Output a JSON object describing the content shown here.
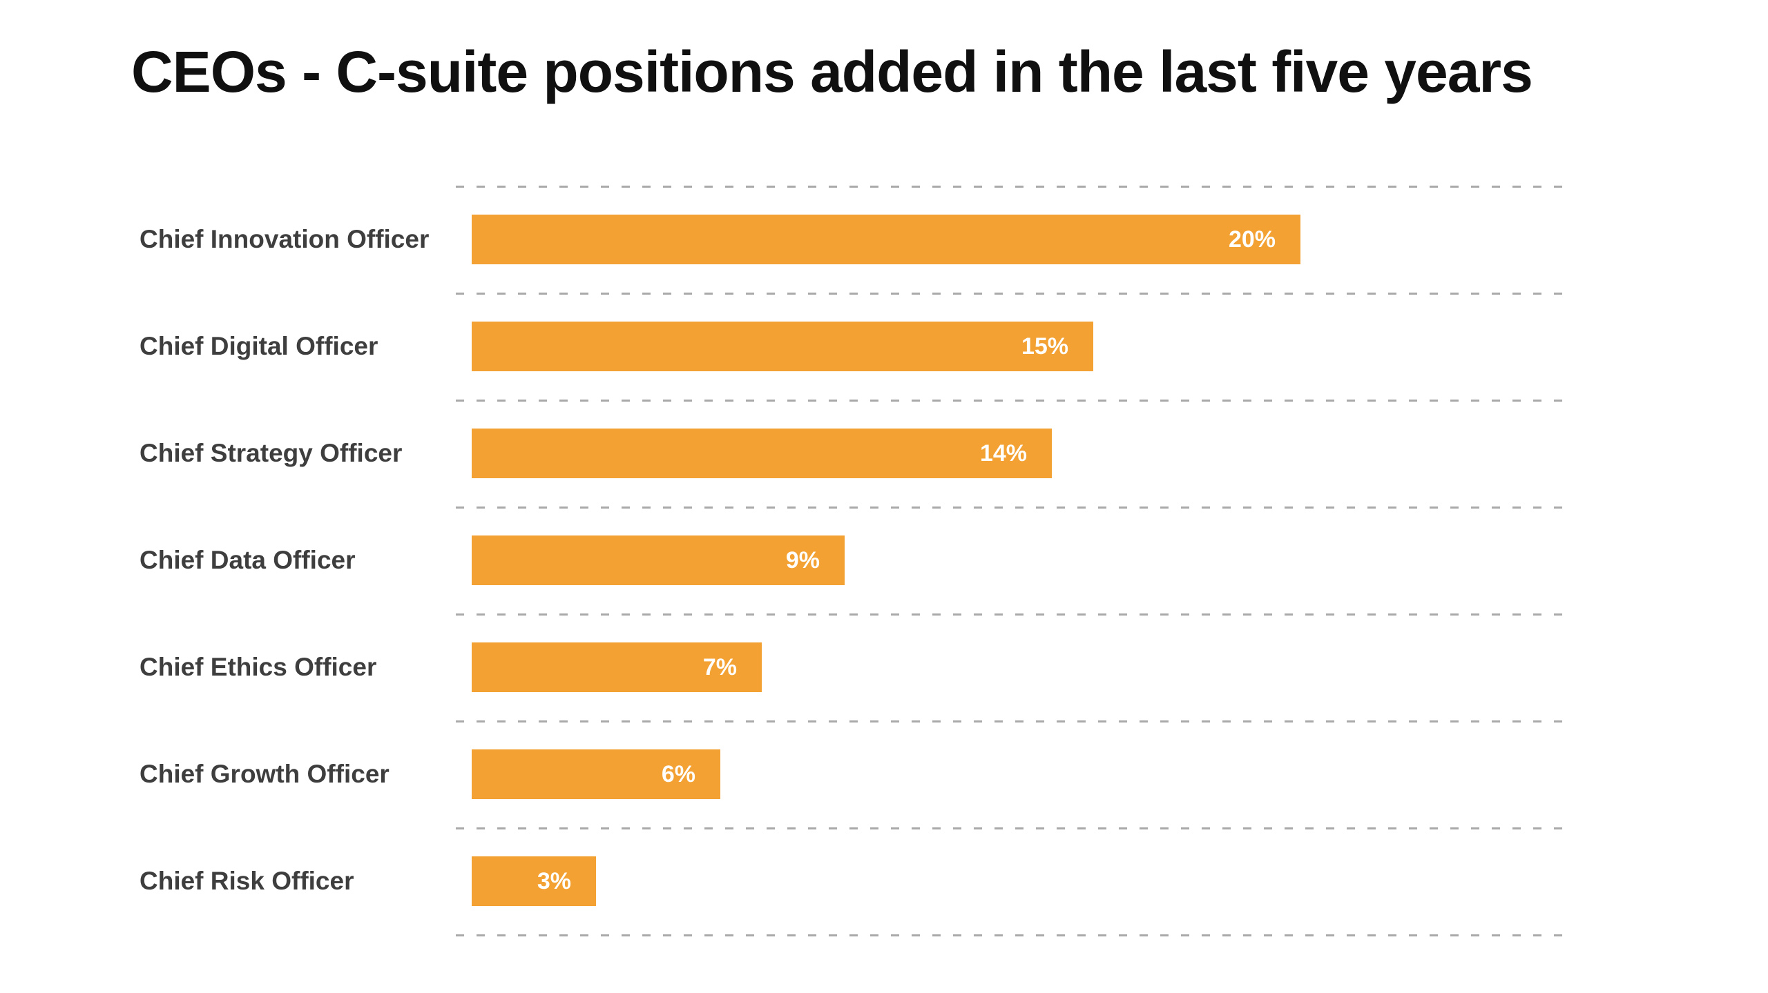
{
  "title": "CEOs - C-suite positions added in the last five years",
  "colors": {
    "bar": "#f2a132",
    "value_label": "#ffffff",
    "category_label": "#3e3e3e",
    "title": "#101010",
    "gridline": "#a9a9a9",
    "background": "#ffffff"
  },
  "chart_data": {
    "type": "bar",
    "orientation": "horizontal",
    "title": "CEOs - C-suite positions added in the last five years",
    "categories": [
      "Chief Innovation Officer",
      "Chief Digital Officer",
      "Chief Strategy Officer",
      "Chief Data Officer",
      "Chief Ethics Officer",
      "Chief Growth Officer",
      "Chief Risk Officer"
    ],
    "values": [
      20,
      15,
      14,
      9,
      7,
      6,
      3
    ],
    "display_values": [
      "20%",
      "15%",
      "14%",
      "9%",
      "7%",
      "6%",
      "3%"
    ],
    "xlabel": "",
    "ylabel": "",
    "xlim": [
      0,
      20
    ],
    "value_labels_inside_bar": true,
    "grid": "dashed horizontal separators between rows",
    "legend": "none"
  }
}
